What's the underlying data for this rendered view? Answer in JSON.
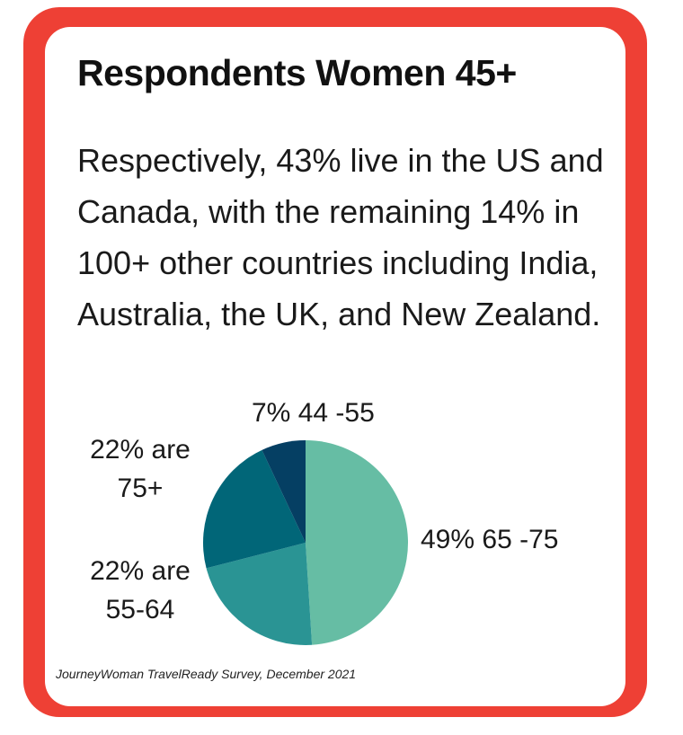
{
  "title": "Respondents Women 45+",
  "body_text": "Respectively, 43% live in the US and Canada, with the remaining 14% in 100+ other countries including India, Australia, the UK, and New Zealand.",
  "source": "JourneyWoman TravelReady Survey, December  2021",
  "colors": {
    "frame": "#ee4035",
    "slices": [
      "#66bda4",
      "#2a9494",
      "#016678",
      "#053f63"
    ]
  },
  "chart_data": {
    "type": "pie",
    "title": "",
    "slices": [
      {
        "label_line1": "49%  65 -75",
        "label_line2": "",
        "value": 49
      },
      {
        "label_line1": "22% are",
        "label_line2": "55-64",
        "value": 22
      },
      {
        "label_line1": "22% are",
        "label_line2": "75+",
        "value": 22
      },
      {
        "label_line1": "7%  44 -55",
        "label_line2": "",
        "value": 7
      }
    ]
  }
}
